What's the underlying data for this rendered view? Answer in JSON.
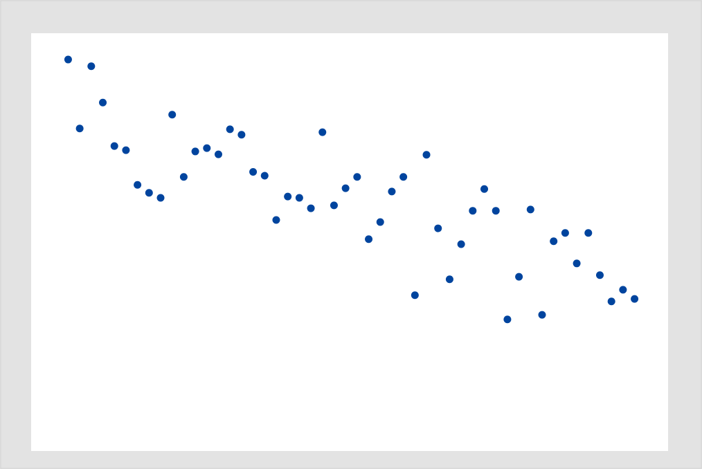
{
  "chart_data": {
    "type": "scatter",
    "color": "#00449e",
    "xlim": [
      -2.2,
      52.9
    ],
    "ylim": [
      0,
      100
    ],
    "x": [
      1,
      2,
      3,
      4,
      5,
      6,
      7,
      8,
      9,
      10,
      11,
      12,
      13,
      14,
      15,
      16,
      17,
      18,
      19,
      20,
      21,
      22,
      23,
      24,
      25,
      26,
      27,
      28,
      29,
      30,
      31,
      32,
      33,
      34,
      35,
      36,
      37,
      38,
      39,
      40,
      41,
      42,
      43,
      44,
      45,
      46,
      47,
      48,
      49,
      50
    ],
    "values": [
      93.7,
      77.2,
      92.1,
      83.4,
      73.0,
      72.0,
      63.7,
      61.8,
      60.6,
      80.5,
      65.6,
      71.7,
      72.5,
      71.0,
      77.0,
      75.7,
      66.8,
      65.9,
      55.3,
      60.9,
      60.6,
      58.1,
      76.3,
      58.8,
      62.9,
      65.6,
      50.7,
      54.8,
      62.1,
      65.6,
      37.3,
      70.9,
      53.3,
      41.1,
      49.5,
      57.5,
      62.7,
      57.5,
      31.5,
      41.7,
      57.8,
      32.6,
      50.2,
      52.2,
      44.9,
      52.2,
      42.1,
      35.8,
      38.6,
      36.4
    ]
  }
}
